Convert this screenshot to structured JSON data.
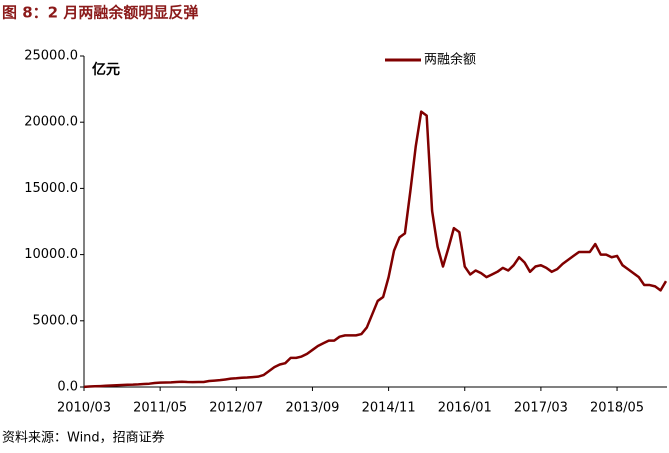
{
  "chart_data": {
    "type": "line",
    "title": "图 8：2 月两融余额明显反弹",
    "y_label": "亿元",
    "source": "资料来源：Wind，招商证券",
    "categories": [
      "2010/03",
      null,
      null,
      null,
      null,
      null,
      null,
      null,
      null,
      null,
      null,
      null,
      null,
      null,
      "2011/05",
      null,
      null,
      null,
      null,
      null,
      null,
      null,
      null,
      null,
      null,
      null,
      null,
      null,
      "2012/07",
      null,
      null,
      null,
      null,
      null,
      null,
      null,
      null,
      null,
      null,
      null,
      null,
      null,
      "2013/09",
      null,
      null,
      null,
      null,
      null,
      null,
      null,
      null,
      null,
      null,
      null,
      null,
      null,
      "2014/11",
      null,
      null,
      null,
      null,
      null,
      null,
      null,
      null,
      null,
      null,
      null,
      null,
      null,
      "2016/01",
      null,
      null,
      null,
      null,
      null,
      null,
      null,
      null,
      null,
      null,
      null,
      null,
      null,
      "2017/03",
      null,
      null,
      null,
      null,
      null,
      null,
      null,
      null,
      null,
      null,
      null,
      null,
      null,
      "2018/05",
      null,
      null,
      null,
      null,
      null,
      null,
      null,
      null,
      null
    ],
    "series": [
      {
        "name": "两融余额",
        "color": "#800000",
        "values": [
          10,
          40,
          60,
          70,
          90,
          110,
          130,
          150,
          170,
          180,
          200,
          230,
          250,
          300,
          330,
          340,
          350,
          380,
          400,
          380,
          370,
          380,
          380,
          450,
          480,
          520,
          570,
          630,
          660,
          700,
          720,
          750,
          780,
          900,
          1200,
          1500,
          1700,
          1800,
          2200,
          2200,
          2300,
          2500,
          2800,
          3100,
          3300,
          3500,
          3500,
          3800,
          3900,
          3900,
          3900,
          4000,
          4500,
          5500,
          6500,
          6800,
          8300,
          10300,
          11300,
          11600,
          14800,
          18200,
          20800,
          20500,
          13300,
          10600,
          9100,
          10500,
          12000,
          11700,
          9100,
          8500,
          8800,
          8600,
          8300,
          8500,
          8700,
          9000,
          8800,
          9200,
          9800,
          9400,
          8700,
          9100,
          9200,
          9000,
          8700,
          8900,
          9300,
          9600,
          9900,
          10200,
          10200,
          10200,
          10800,
          10000,
          10000,
          9800,
          9900,
          9200,
          8900,
          8600,
          8300,
          7700,
          7700,
          7600,
          7300,
          8000
        ]
      }
    ],
    "ylim": [
      0,
      25000
    ],
    "yticks": [
      {
        "value": 0,
        "label": "0.0"
      },
      {
        "value": 5000,
        "label": "5000.0"
      },
      {
        "value": 10000,
        "label": "10000.0"
      },
      {
        "value": 15000,
        "label": "15000.0"
      },
      {
        "value": 20000,
        "label": "20000.0"
      },
      {
        "value": 25000,
        "label": "25000.0"
      }
    ],
    "legend": "top"
  }
}
